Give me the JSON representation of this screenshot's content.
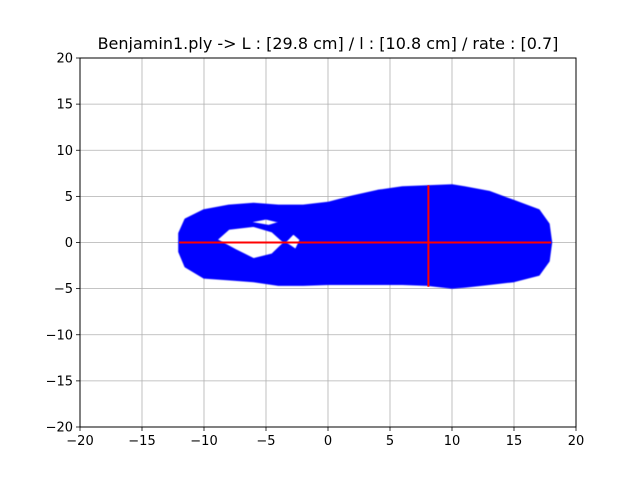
{
  "chart_data": {
    "type": "scatter",
    "title": "Benjamin1.ply ->  L : [29.8 cm] / l : [10.8 cm] / rate : [0.7]",
    "xlabel": "",
    "ylabel": "",
    "xlim": [
      -20,
      20
    ],
    "ylim": [
      -20,
      20
    ],
    "grid": true,
    "x_ticks": [
      -20,
      -15,
      -10,
      -5,
      0,
      5,
      10,
      15,
      20
    ],
    "y_ticks": [
      -20,
      -15,
      -10,
      -5,
      0,
      5,
      10,
      15,
      20
    ],
    "x_tick_labels": [
      "−20",
      "−15",
      "−10",
      "−5",
      "0",
      "5",
      "10",
      "15",
      "20"
    ],
    "y_tick_labels": [
      "−20",
      "−15",
      "−10",
      "−5",
      "0",
      "5",
      "10",
      "15",
      "20"
    ],
    "point_cloud": {
      "color": "#0000ff",
      "outline_upper": [
        [
          -12,
          1.0
        ],
        [
          -11.5,
          2.5
        ],
        [
          -10,
          3.5
        ],
        [
          -8,
          4.0
        ],
        [
          -6,
          4.2
        ],
        [
          -4,
          4.0
        ],
        [
          -2,
          4.0
        ],
        [
          0,
          4.3
        ],
        [
          2,
          5.0
        ],
        [
          4,
          5.6
        ],
        [
          6,
          6.0
        ],
        [
          8,
          6.1
        ],
        [
          10,
          6.2
        ],
        [
          11,
          6.0
        ],
        [
          13,
          5.5
        ],
        [
          15,
          4.5
        ],
        [
          17,
          3.5
        ],
        [
          17.8,
          2.0
        ],
        [
          18,
          0.0
        ]
      ],
      "outline_lower": [
        [
          18,
          0.0
        ],
        [
          17.8,
          -2.0
        ],
        [
          17,
          -3.5
        ],
        [
          15,
          -4.2
        ],
        [
          13,
          -4.5
        ],
        [
          11,
          -4.8
        ],
        [
          10,
          -4.9
        ],
        [
          8,
          -4.6
        ],
        [
          6,
          -4.5
        ],
        [
          4,
          -4.5
        ],
        [
          2,
          -4.5
        ],
        [
          0,
          -4.5
        ],
        [
          -2,
          -4.6
        ],
        [
          -4,
          -4.6
        ],
        [
          -6,
          -4.2
        ],
        [
          -8,
          -4.0
        ],
        [
          -10,
          -3.8
        ],
        [
          -11.5,
          -2.6
        ],
        [
          -12,
          -1.0
        ]
      ],
      "holes": [
        [
          [
            -9,
            0.3
          ],
          [
            -8,
            1.5
          ],
          [
            -6,
            1.8
          ],
          [
            -4.5,
            1.2
          ],
          [
            -3.5,
            0.0
          ],
          [
            -4.5,
            -1.3
          ],
          [
            -6,
            -1.8
          ],
          [
            -7.5,
            -0.8
          ]
        ],
        [
          [
            -6.5,
            2.2
          ],
          [
            -5,
            2.6
          ],
          [
            -3.8,
            2.2
          ],
          [
            -4.8,
            1.8
          ]
        ],
        [
          [
            -3.5,
            0.0
          ],
          [
            -2.8,
            1.0
          ],
          [
            -2.2,
            0.3
          ],
          [
            -2.6,
            -0.8
          ]
        ]
      ]
    },
    "series": [
      {
        "type": "line",
        "color": "#ff0000",
        "x": [
          -12,
          18
        ],
        "y": [
          0,
          0
        ]
      },
      {
        "type": "line",
        "color": "#ff0000",
        "x": [
          8.1,
          8.1
        ],
        "y": [
          -4.8,
          6.2
        ]
      }
    ]
  }
}
